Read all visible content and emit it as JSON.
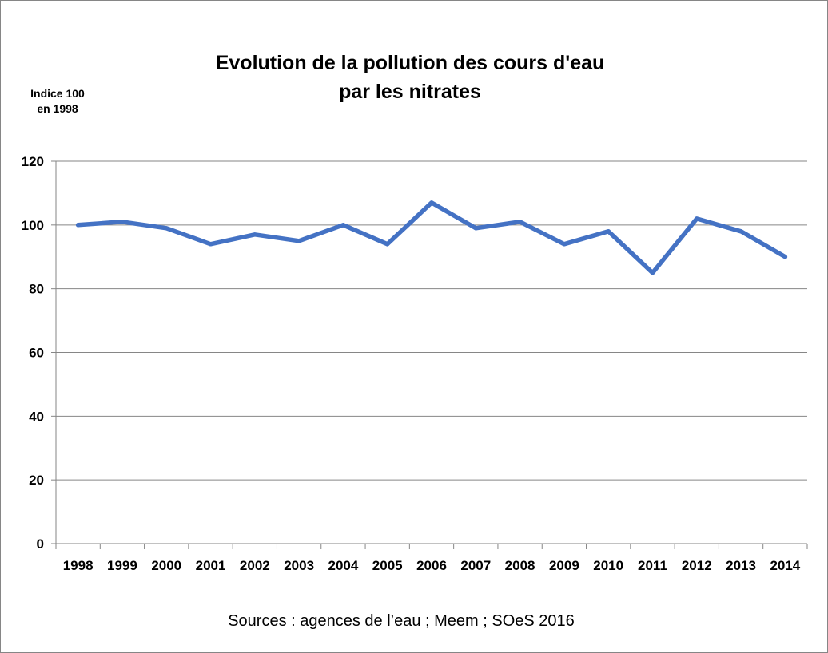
{
  "chart_data": {
    "type": "line",
    "title_line1": "Evolution de la pollution des cours d'eau",
    "title_line2": "par les nitrates",
    "ylabel_line1": "Indice 100",
    "ylabel_line2": "en 1998",
    "source": "Sources : agences de l’eau ; Meem ; SOeS 2016",
    "categories": [
      "1998",
      "1999",
      "2000",
      "2001",
      "2002",
      "2003",
      "2004",
      "2005",
      "2006",
      "2007",
      "2008",
      "2009",
      "2010",
      "2011",
      "2012",
      "2013",
      "2014"
    ],
    "values": [
      100,
      101,
      99,
      94,
      97,
      95,
      100,
      94,
      107,
      99,
      101,
      94,
      98,
      85,
      102,
      98,
      90
    ],
    "ylim": [
      0,
      120
    ],
    "yticks": [
      0,
      20,
      40,
      60,
      80,
      100,
      120
    ],
    "grid": true,
    "legend": "none",
    "line_color": "#4472C4",
    "grid_color": "#868686"
  }
}
